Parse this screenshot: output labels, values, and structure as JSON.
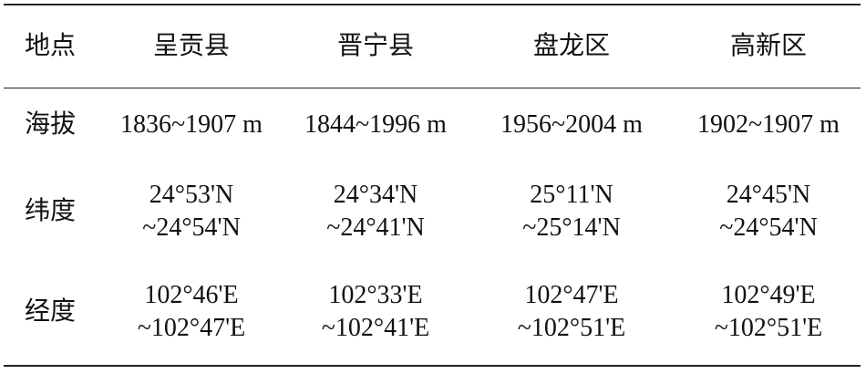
{
  "table": {
    "header": [
      "地点",
      "呈贡县",
      "晋宁县",
      "盘龙区",
      "高新区"
    ],
    "rows": [
      [
        [
          "海拔"
        ],
        [
          "1836~1907 m"
        ],
        [
          "1844~1996 m"
        ],
        [
          "1956~2004 m"
        ],
        [
          "1902~1907 m"
        ]
      ],
      [
        [
          "纬度"
        ],
        [
          "24°53'N",
          "~24°54'N"
        ],
        [
          "24°34'N",
          "~24°41'N"
        ],
        [
          "25°11'N",
          "~25°14'N"
        ],
        [
          "24°45'N",
          "~24°54'N"
        ]
      ],
      [
        [
          "经度"
        ],
        [
          "102°46'E",
          "~102°47'E"
        ],
        [
          "102°33'E",
          "~102°41'E"
        ],
        [
          "102°47'E",
          "~102°51'E"
        ],
        [
          "102°49'E",
          "~102°51'E"
        ]
      ]
    ]
  }
}
